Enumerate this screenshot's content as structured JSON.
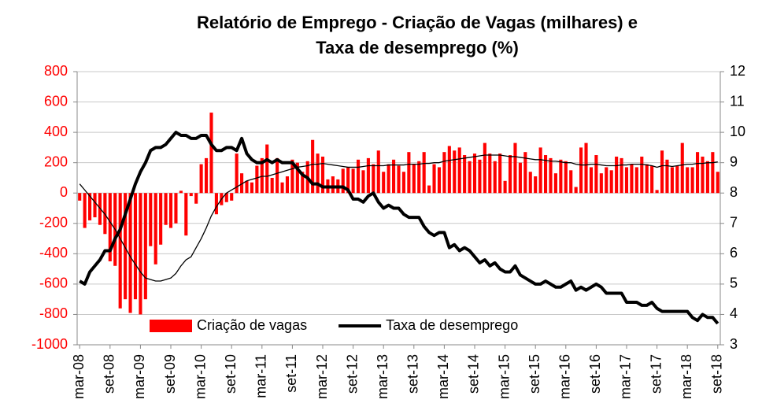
{
  "chart_data": {
    "type": "bar_line",
    "title": [
      "Relatório de Emprego - Criação de Vagas (milhares) e",
      "Taxa de desemprego (%)"
    ],
    "categories": [
      "mar-08",
      null,
      null,
      null,
      null,
      null,
      "set-08",
      null,
      null,
      null,
      null,
      null,
      "mar-09",
      null,
      null,
      null,
      null,
      null,
      "set-09",
      null,
      null,
      null,
      null,
      null,
      "mar-10",
      null,
      null,
      null,
      null,
      null,
      "set-10",
      null,
      null,
      null,
      null,
      null,
      "mar-11",
      null,
      null,
      null,
      null,
      null,
      "set-11",
      null,
      null,
      null,
      null,
      null,
      "mar-12",
      null,
      null,
      null,
      null,
      null,
      "set-12",
      null,
      null,
      null,
      null,
      null,
      "mar-13",
      null,
      null,
      null,
      null,
      null,
      "set-13",
      null,
      null,
      null,
      null,
      null,
      "mar-14",
      null,
      null,
      null,
      null,
      null,
      "set-14",
      null,
      null,
      null,
      null,
      null,
      "mar-15",
      null,
      null,
      null,
      null,
      null,
      "set-15",
      null,
      null,
      null,
      null,
      null,
      "mar-16",
      null,
      null,
      null,
      null,
      null,
      "set-16",
      null,
      null,
      null,
      null,
      null,
      "mar-17",
      null,
      null,
      null,
      null,
      null,
      "set-17",
      null,
      null,
      null,
      null,
      null,
      "mar-18",
      null,
      null,
      null,
      null,
      null,
      "set-18"
    ],
    "series": [
      {
        "name": "Criação de vagas",
        "type": "bar",
        "color": "#ff0000",
        "values": [
          -50,
          -230,
          -180,
          -160,
          -210,
          -270,
          -450,
          -480,
          -760,
          -700,
          -790,
          -700,
          -800,
          -700,
          -350,
          -470,
          -340,
          -210,
          -230,
          -200,
          15,
          -280,
          -20,
          -70,
          190,
          230,
          530,
          -140,
          -80,
          -60,
          -50,
          260,
          130,
          80,
          70,
          180,
          230,
          320,
          100,
          230,
          70,
          110,
          220,
          200,
          140,
          210,
          350,
          260,
          240,
          90,
          110,
          90,
          160,
          170,
          160,
          220,
          150,
          230,
          190,
          280,
          140,
          190,
          220,
          180,
          140,
          270,
          190,
          210,
          270,
          50,
          190,
          170,
          270,
          310,
          280,
          300,
          250,
          210,
          260,
          220,
          330,
          260,
          210,
          260,
          80,
          250,
          330,
          200,
          270,
          140,
          110,
          300,
          250,
          230,
          130,
          220,
          210,
          150,
          40,
          300,
          330,
          170,
          250,
          130,
          170,
          150,
          240,
          230,
          170,
          190,
          170,
          240,
          190,
          180,
          20,
          280,
          220,
          170,
          180,
          330,
          170,
          170,
          270,
          240,
          210,
          270,
          140
        ]
      },
      {
        "type": "line",
        "color": "#000000",
        "width": 1.3,
        "values": [
          60,
          20,
          -20,
          -60,
          -100,
          -140,
          -190,
          -240,
          -300,
          -360,
          -420,
          -470,
          -520,
          -560,
          -570,
          -580,
          -580,
          -570,
          -560,
          -530,
          -480,
          -440,
          -420,
          -360,
          -300,
          -230,
          -150,
          -90,
          -40,
          0,
          20,
          40,
          60,
          80,
          90,
          100,
          110,
          110,
          120,
          130,
          140,
          150,
          160,
          170,
          175,
          180,
          190,
          190,
          195,
          190,
          185,
          180,
          175,
          170,
          170,
          170,
          175,
          180,
          180,
          180,
          180,
          185,
          185,
          185,
          185,
          190,
          190,
          190,
          195,
          195,
          200,
          200,
          210,
          215,
          220,
          225,
          230,
          235,
          240,
          245,
          250,
          250,
          250,
          250,
          245,
          240,
          240,
          235,
          230,
          225,
          220,
          220,
          215,
          210,
          210,
          205,
          200,
          200,
          190,
          185,
          185,
          190,
          190,
          185,
          180,
          180,
          180,
          185,
          185,
          190,
          190,
          190,
          185,
          180,
          170,
          180,
          180,
          175,
          180,
          185,
          190,
          190,
          195,
          195,
          200,
          200,
          205
        ]
      },
      {
        "name": "Taxa de desemprego",
        "type": "line",
        "axis": "y2",
        "color": "#000000",
        "width": 4,
        "values": [
          5.1,
          5.0,
          5.4,
          5.6,
          5.8,
          6.1,
          6.1,
          6.5,
          6.8,
          7.3,
          7.8,
          8.3,
          8.7,
          9.0,
          9.4,
          9.5,
          9.5,
          9.6,
          9.8,
          10.0,
          9.9,
          9.9,
          9.8,
          9.8,
          9.9,
          9.9,
          9.6,
          9.4,
          9.4,
          9.5,
          9.5,
          9.4,
          9.8,
          9.3,
          9.1,
          9.0,
          9.0,
          9.1,
          9.0,
          9.1,
          9.0,
          9.0,
          9.0,
          8.8,
          8.6,
          8.5,
          8.3,
          8.3,
          8.2,
          8.2,
          8.2,
          8.2,
          8.2,
          8.1,
          7.8,
          7.8,
          7.7,
          7.9,
          8.0,
          7.7,
          7.5,
          7.6,
          7.5,
          7.5,
          7.3,
          7.2,
          7.2,
          7.2,
          6.9,
          6.7,
          6.6,
          6.7,
          6.7,
          6.2,
          6.3,
          6.1,
          6.2,
          6.1,
          5.9,
          5.7,
          5.8,
          5.6,
          5.7,
          5.5,
          5.4,
          5.4,
          5.6,
          5.3,
          5.2,
          5.1,
          5.0,
          5.0,
          5.1,
          5.0,
          4.9,
          4.9,
          5.0,
          5.1,
          4.8,
          4.9,
          4.8,
          4.9,
          5.0,
          4.9,
          4.7,
          4.7,
          4.7,
          4.7,
          4.4,
          4.4,
          4.4,
          4.3,
          4.3,
          4.4,
          4.2,
          4.1,
          4.1,
          4.1,
          4.1,
          4.1,
          4.1,
          3.9,
          3.8,
          4.0,
          3.9,
          3.9,
          3.7
        ]
      }
    ],
    "ylim": [
      -1000,
      800
    ],
    "yticks": [
      -1000,
      -800,
      -600,
      -400,
      -200,
      0,
      200,
      400,
      600,
      800
    ],
    "y2lim": [
      3,
      12
    ],
    "y2ticks": [
      3,
      4,
      5,
      6,
      7,
      8,
      9,
      10,
      11,
      12
    ],
    "grid": true,
    "legend": "bottom"
  }
}
